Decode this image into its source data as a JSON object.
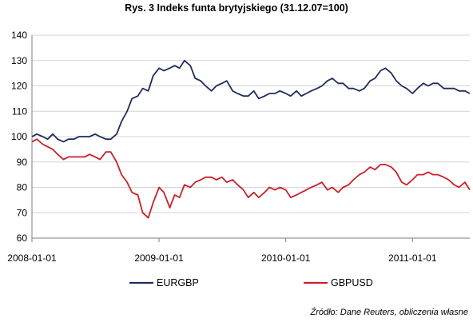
{
  "title": "Rys. 3 Indeks funta brytyjskiego (31.12.07=100)",
  "source_note": "Źródło: Dane Reuters, obliczenia własne",
  "colors": {
    "EURGBP": "#1f2d5c",
    "GBPUSD": "#c8202a",
    "grid": "#d4d4d4",
    "axis": "#7f7f7f"
  },
  "chart_data": {
    "type": "line",
    "title": "Rys. 3 Indeks funta brytyjskiego (31.12.07=100)",
    "xlabel": "",
    "ylabel": "",
    "ylim": [
      60,
      140
    ],
    "yticks": [
      "60",
      "70",
      "80",
      "90",
      "100",
      "110",
      "120",
      "130",
      "140"
    ],
    "xlim": [
      "2008-01-01",
      "2011-06-15"
    ],
    "xticks": [
      "2008-01-01",
      "2009-01-01",
      "2010-01-01",
      "2011-01-01"
    ],
    "grid": "horizontal",
    "legend_position": "bottom",
    "series": [
      {
        "name": "EURGBP",
        "x": [
          "2008-01-01",
          "2008-01-15",
          "2008-02-01",
          "2008-02-15",
          "2008-03-01",
          "2008-03-15",
          "2008-04-01",
          "2008-04-15",
          "2008-05-01",
          "2008-05-15",
          "2008-06-01",
          "2008-06-15",
          "2008-07-01",
          "2008-07-15",
          "2008-08-01",
          "2008-08-15",
          "2008-09-01",
          "2008-09-15",
          "2008-10-01",
          "2008-10-15",
          "2008-11-01",
          "2008-11-15",
          "2008-12-01",
          "2008-12-15",
          "2009-01-01",
          "2009-01-15",
          "2009-02-01",
          "2009-02-15",
          "2009-03-01",
          "2009-03-15",
          "2009-04-01",
          "2009-04-15",
          "2009-05-01",
          "2009-05-15",
          "2009-06-01",
          "2009-06-15",
          "2009-07-01",
          "2009-07-15",
          "2009-08-01",
          "2009-08-15",
          "2009-09-01",
          "2009-09-15",
          "2009-10-01",
          "2009-10-15",
          "2009-11-01",
          "2009-11-15",
          "2009-12-01",
          "2009-12-15",
          "2010-01-01",
          "2010-01-15",
          "2010-02-01",
          "2010-02-15",
          "2010-03-01",
          "2010-03-15",
          "2010-04-01",
          "2010-04-15",
          "2010-05-01",
          "2010-05-15",
          "2010-06-01",
          "2010-06-15",
          "2010-07-01",
          "2010-07-15",
          "2010-08-01",
          "2010-08-15",
          "2010-09-01",
          "2010-09-15",
          "2010-10-01",
          "2010-10-15",
          "2010-11-01",
          "2010-11-15",
          "2010-12-01",
          "2010-12-15",
          "2011-01-01",
          "2011-01-15",
          "2011-02-01",
          "2011-02-15",
          "2011-03-01",
          "2011-03-15",
          "2011-04-01",
          "2011-04-15",
          "2011-05-01",
          "2011-05-15",
          "2011-06-01",
          "2011-06-15"
        ],
        "values": [
          100,
          101,
          100,
          99,
          101,
          99,
          98,
          99,
          99,
          100,
          100,
          100,
          101,
          100,
          99,
          99,
          101,
          106,
          110,
          115,
          116,
          119,
          118,
          124,
          127,
          126,
          127,
          128,
          127,
          130,
          128,
          123,
          122,
          120,
          118,
          120,
          121,
          122,
          118,
          117,
          116,
          116,
          118,
          115,
          116,
          117,
          117,
          118,
          117,
          116,
          118,
          116,
          117,
          118,
          119,
          120,
          122,
          123,
          121,
          121,
          119,
          119,
          118,
          119,
          122,
          123,
          126,
          127,
          125,
          122,
          120,
          119,
          117,
          119,
          121,
          120,
          121,
          121,
          119,
          119,
          119,
          118,
          118,
          117
        ]
      },
      {
        "name": "GBPUSD",
        "x": [
          "2008-01-01",
          "2008-01-15",
          "2008-02-01",
          "2008-02-15",
          "2008-03-01",
          "2008-03-15",
          "2008-04-01",
          "2008-04-15",
          "2008-05-01",
          "2008-05-15",
          "2008-06-01",
          "2008-06-15",
          "2008-07-01",
          "2008-07-15",
          "2008-08-01",
          "2008-08-15",
          "2008-09-01",
          "2008-09-15",
          "2008-10-01",
          "2008-10-15",
          "2008-11-01",
          "2008-11-15",
          "2008-12-01",
          "2008-12-15",
          "2009-01-01",
          "2009-01-15",
          "2009-02-01",
          "2009-02-15",
          "2009-03-01",
          "2009-03-15",
          "2009-04-01",
          "2009-04-15",
          "2009-05-01",
          "2009-05-15",
          "2009-06-01",
          "2009-06-15",
          "2009-07-01",
          "2009-07-15",
          "2009-08-01",
          "2009-08-15",
          "2009-09-01",
          "2009-09-15",
          "2009-10-01",
          "2009-10-15",
          "2009-11-01",
          "2009-11-15",
          "2009-12-01",
          "2009-12-15",
          "2010-01-01",
          "2010-01-15",
          "2010-02-01",
          "2010-02-15",
          "2010-03-01",
          "2010-03-15",
          "2010-04-01",
          "2010-04-15",
          "2010-05-01",
          "2010-05-15",
          "2010-06-01",
          "2010-06-15",
          "2010-07-01",
          "2010-07-15",
          "2010-08-01",
          "2010-08-15",
          "2010-09-01",
          "2010-09-15",
          "2010-10-01",
          "2010-10-15",
          "2010-11-01",
          "2010-11-15",
          "2010-12-01",
          "2010-12-15",
          "2011-01-01",
          "2011-01-15",
          "2011-02-01",
          "2011-02-15",
          "2011-03-01",
          "2011-03-15",
          "2011-04-01",
          "2011-04-15",
          "2011-05-01",
          "2011-05-15",
          "2011-06-01",
          "2011-06-15"
        ],
        "values": [
          98,
          99,
          97,
          96,
          95,
          93,
          91,
          92,
          92,
          92,
          92,
          93,
          92,
          91,
          94,
          94,
          90,
          85,
          82,
          78,
          77,
          70,
          68,
          74,
          80,
          78,
          72,
          77,
          76,
          81,
          80,
          82,
          83,
          84,
          84,
          83,
          84,
          82,
          83,
          81,
          79,
          76,
          78,
          76,
          78,
          80,
          79,
          80,
          79,
          76,
          77,
          78,
          79,
          80,
          81,
          82,
          79,
          80,
          78,
          80,
          81,
          83,
          85,
          86,
          88,
          87,
          89,
          89,
          88,
          86,
          82,
          81,
          83,
          85,
          85,
          86,
          85,
          85,
          84,
          83,
          81,
          80,
          82,
          79
        ]
      }
    ]
  }
}
